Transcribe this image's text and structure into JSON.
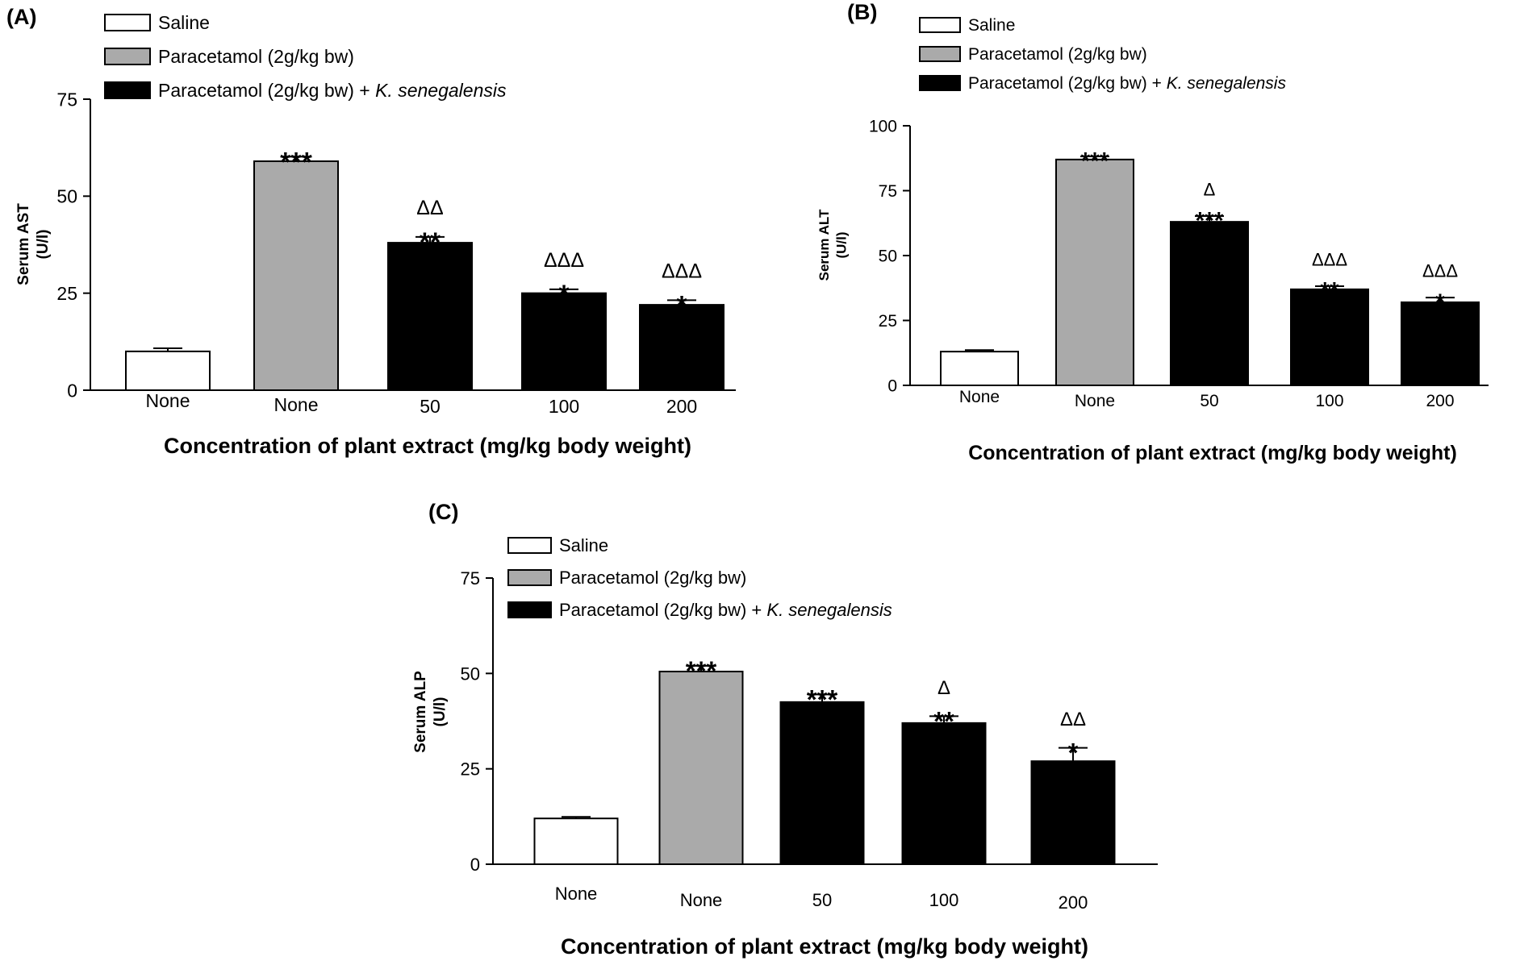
{
  "legend": {
    "items": [
      {
        "label": "Saline",
        "italic": "",
        "color": "#ffffff"
      },
      {
        "label": "Paracetamol (2g/kg bw)",
        "italic": "",
        "color": "#aaaaaa"
      },
      {
        "label": "Paracetamol (2g/kg bw) + ",
        "italic": "K. senegalensis",
        "color": "#000000"
      }
    ]
  },
  "chart_data": [
    {
      "panel": "(A)",
      "type": "bar",
      "ylabel": "Serum AST\n(U/l)",
      "xlabel": "Concentration of plant extract (mg/kg body weight)",
      "categories": [
        "None",
        "None",
        "50",
        "100",
        "200"
      ],
      "ylim": [
        0,
        75
      ],
      "yticks": [
        0,
        25,
        50,
        75
      ],
      "values": [
        10,
        59,
        38,
        25,
        22
      ],
      "errors": [
        0.8,
        1.2,
        1.5,
        1.0,
        1.2
      ],
      "groups": [
        "Saline",
        "Paracetamol (2g/kg bw)",
        "Paracetamol (2g/kg bw) + K. senegalensis",
        "Paracetamol (2g/kg bw) + K. senegalensis",
        "Paracetamol (2g/kg bw) + K. senegalensis"
      ],
      "significance": [
        "",
        "***",
        "**",
        "*",
        "*"
      ],
      "deltas": [
        "",
        "",
        "ΔΔ",
        "ΔΔΔ",
        "ΔΔΔ"
      ]
    },
    {
      "panel": "(B)",
      "type": "bar",
      "ylabel": "Serum ALT\n(U/l)",
      "xlabel": "Concentration of plant extract (mg/kg body weight)",
      "categories": [
        "None",
        "None",
        "50",
        "100",
        "200"
      ],
      "ylim": [
        0,
        100
      ],
      "yticks": [
        0,
        25,
        50,
        75,
        100
      ],
      "values": [
        13,
        87,
        63,
        37,
        32
      ],
      "errors": [
        0.6,
        1.2,
        2.2,
        1.2,
        1.8
      ],
      "groups": [
        "Saline",
        "Paracetamol (2g/kg bw)",
        "Paracetamol (2g/kg bw) + K. senegalensis",
        "Paracetamol (2g/kg bw) + K. senegalensis",
        "Paracetamol (2g/kg bw) + K. senegalensis"
      ],
      "significance": [
        "",
        "***",
        "***",
        "**",
        "*"
      ],
      "deltas": [
        "",
        "",
        "Δ",
        "ΔΔΔ",
        "ΔΔΔ"
      ]
    },
    {
      "panel": "(C)",
      "type": "bar",
      "ylabel": "Serum ALP\n(U/l)",
      "xlabel": "Concentration of plant extract (mg/kg body weight)",
      "categories": [
        "None",
        "None",
        "50",
        "100",
        "200"
      ],
      "ylim": [
        0,
        75
      ],
      "yticks": [
        0,
        25,
        50,
        75
      ],
      "values": [
        12,
        50.5,
        42.5,
        37,
        27
      ],
      "errors": [
        0.4,
        1.5,
        2.0,
        1.8,
        3.5
      ],
      "groups": [
        "Saline",
        "Paracetamol (2g/kg bw)",
        "Paracetamol (2g/kg bw) + K. senegalensis",
        "Paracetamol (2g/kg bw) + K. senegalensis",
        "Paracetamol (2g/kg bw) + K. senegalensis"
      ],
      "significance": [
        "",
        "***",
        "***",
        "**",
        "*"
      ],
      "deltas": [
        "",
        "",
        "",
        "Δ",
        "ΔΔ"
      ]
    }
  ]
}
